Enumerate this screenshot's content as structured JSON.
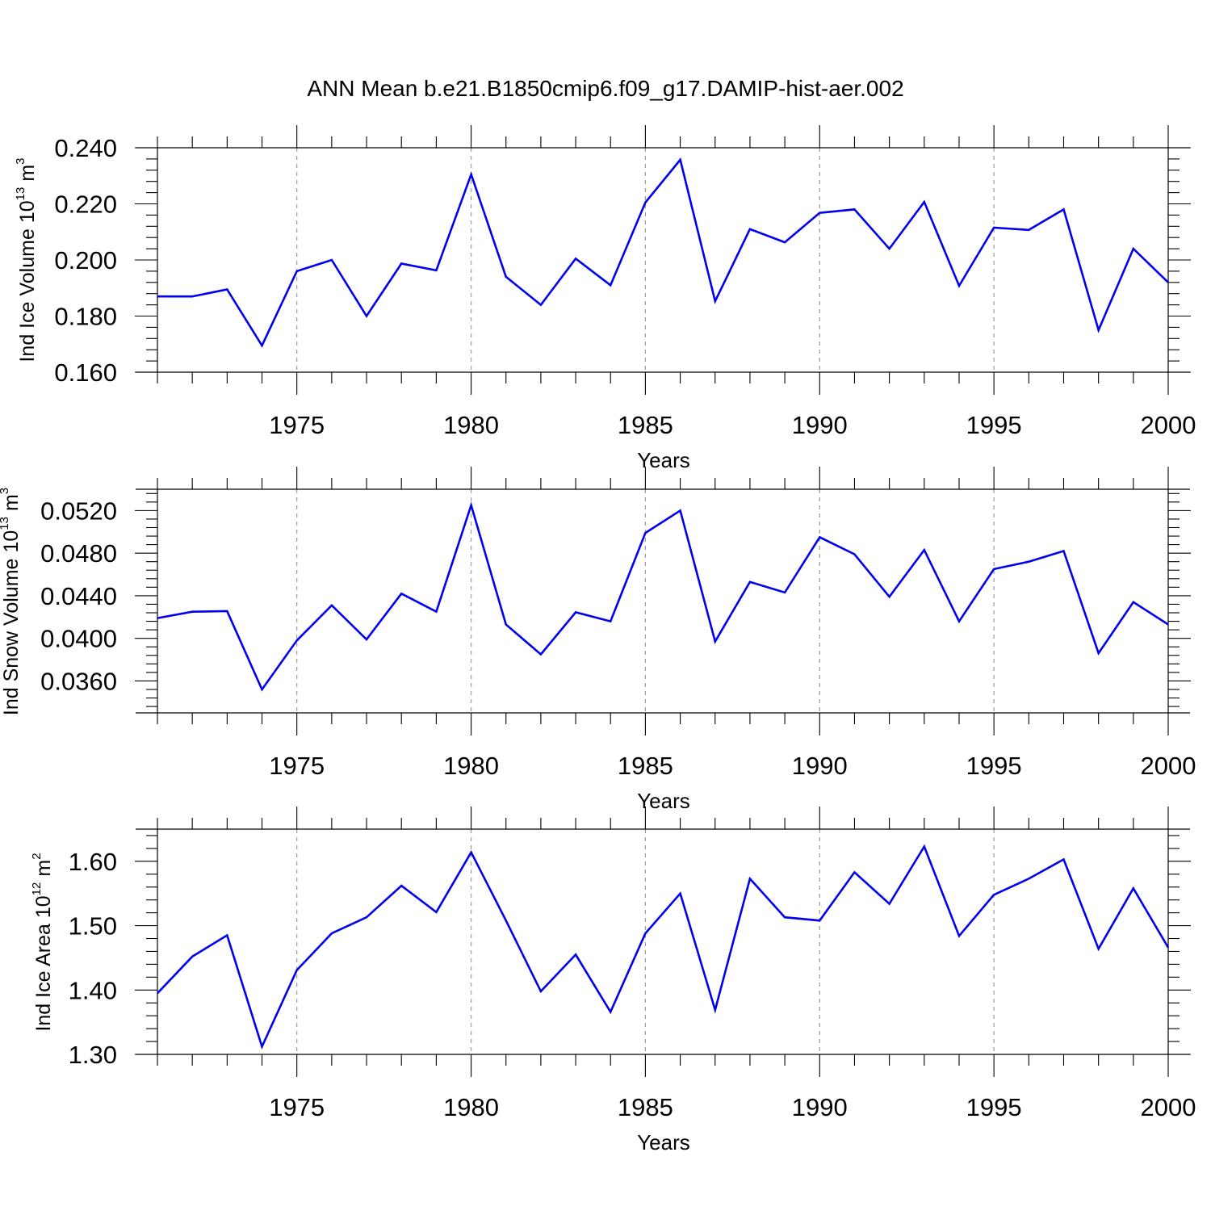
{
  "figure": {
    "title": "ANN Mean b.e21.B1850cmip6.f09_g17.DAMIP-hist-aer.002"
  },
  "chart_data": [
    {
      "type": "line",
      "ylabel": "Ind Ice Volume",
      "yunit_base": "10",
      "yunit_exp": "13",
      "yunit_unit": "m",
      "yunit_unit_exp": "3",
      "xlabel": "Years",
      "xlim": [
        1971,
        2000
      ],
      "ylim": [
        0.16,
        0.24
      ],
      "xticks": [
        1975,
        1980,
        1985,
        1990,
        1995,
        2000
      ],
      "xtick_labels": [
        "1975",
        "1980",
        "1985",
        "1990",
        "1995",
        "2000"
      ],
      "yticks": [
        0.16,
        0.18,
        0.2,
        0.22,
        0.24
      ],
      "ytick_labels": [
        "0.160",
        "0.180",
        "0.200",
        "0.220",
        "0.240"
      ],
      "grid": "vertical dashed at major x ticks",
      "series": [
        {
          "name": "Ind Ice Volume",
          "color": "#0000ee",
          "x": [
            1971,
            1972,
            1973,
            1974,
            1975,
            1976,
            1977,
            1978,
            1979,
            1980,
            1981,
            1982,
            1983,
            1984,
            1985,
            1986,
            1987,
            1988,
            1989,
            1990,
            1991,
            1992,
            1993,
            1994,
            1995,
            1996,
            1997,
            1998,
            1999,
            2000
          ],
          "y": [
            0.187,
            0.187,
            0.1895,
            0.1695,
            0.196,
            0.2,
            0.18,
            0.1987,
            0.1963,
            0.2305,
            0.194,
            0.184,
            0.2005,
            0.191,
            0.2205,
            0.2357,
            0.1853,
            0.211,
            0.2063,
            0.2168,
            0.218,
            0.204,
            0.2207,
            0.1908,
            0.2115,
            0.2107,
            0.218,
            0.175,
            0.204,
            0.192
          ]
        }
      ]
    },
    {
      "type": "line",
      "ylabel": "Ind Snow Volume",
      "yunit_base": "10",
      "yunit_exp": "13",
      "yunit_unit": "m",
      "yunit_unit_exp": "3",
      "xlabel": "Years",
      "xlim": [
        1971,
        2000
      ],
      "ylim": [
        0.033,
        0.054
      ],
      "xticks": [
        1975,
        1980,
        1985,
        1990,
        1995,
        2000
      ],
      "xtick_labels": [
        "1975",
        "1980",
        "1985",
        "1990",
        "1995",
        "2000"
      ],
      "yticks": [
        0.036,
        0.04,
        0.044,
        0.048,
        0.052
      ],
      "ytick_labels": [
        "0.0360",
        "0.0400",
        "0.0440",
        "0.0480",
        "0.0520"
      ],
      "grid": "vertical dashed at major x ticks",
      "series": [
        {
          "name": "Ind Snow Volume",
          "color": "#0000ee",
          "x": [
            1971,
            1972,
            1973,
            1974,
            1975,
            1976,
            1977,
            1978,
            1979,
            1980,
            1981,
            1982,
            1983,
            1984,
            1985,
            1986,
            1987,
            1988,
            1989,
            1990,
            1991,
            1992,
            1993,
            1994,
            1995,
            1996,
            1997,
            1998,
            1999,
            2000
          ],
          "y": [
            0.0419,
            0.0425,
            0.04255,
            0.0352,
            0.0398,
            0.0431,
            0.0399,
            0.0442,
            0.0425,
            0.0525,
            0.0413,
            0.0385,
            0.04245,
            0.0416,
            0.0499,
            0.052,
            0.0397,
            0.0453,
            0.0443,
            0.0495,
            0.0479,
            0.0439,
            0.0483,
            0.0416,
            0.0465,
            0.0472,
            0.0482,
            0.0386,
            0.0434,
            0.0413
          ]
        }
      ]
    },
    {
      "type": "line",
      "ylabel": "Ind Ice Area",
      "yunit_base": "10",
      "yunit_exp": "12",
      "yunit_unit": "m",
      "yunit_unit_exp": "2",
      "xlabel": "Years",
      "xlim": [
        1971,
        2000
      ],
      "ylim": [
        1.3,
        1.65
      ],
      "xticks": [
        1975,
        1980,
        1985,
        1990,
        1995,
        2000
      ],
      "xtick_labels": [
        "1975",
        "1980",
        "1985",
        "1990",
        "1995",
        "2000"
      ],
      "yticks": [
        1.3,
        1.4,
        1.5,
        1.6
      ],
      "ytick_labels": [
        "1.30",
        "1.40",
        "1.50",
        "1.60"
      ],
      "grid": "vertical dashed at major x ticks",
      "series": [
        {
          "name": "Ind Ice Area",
          "color": "#0000ee",
          "x": [
            1971,
            1972,
            1973,
            1974,
            1975,
            1976,
            1977,
            1978,
            1979,
            1980,
            1981,
            1982,
            1983,
            1984,
            1985,
            1986,
            1987,
            1988,
            1989,
            1990,
            1991,
            1992,
            1993,
            1994,
            1995,
            1996,
            1997,
            1998,
            1999,
            2000
          ],
          "y": [
            1.395,
            1.452,
            1.485,
            1.312,
            1.431,
            1.488,
            1.513,
            1.562,
            1.521,
            1.614,
            1.508,
            1.398,
            1.455,
            1.366,
            1.488,
            1.55,
            1.369,
            1.573,
            1.513,
            1.508,
            1.583,
            1.534,
            1.623,
            1.484,
            1.548,
            1.573,
            1.603,
            1.464,
            1.558,
            1.466
          ]
        }
      ]
    }
  ]
}
